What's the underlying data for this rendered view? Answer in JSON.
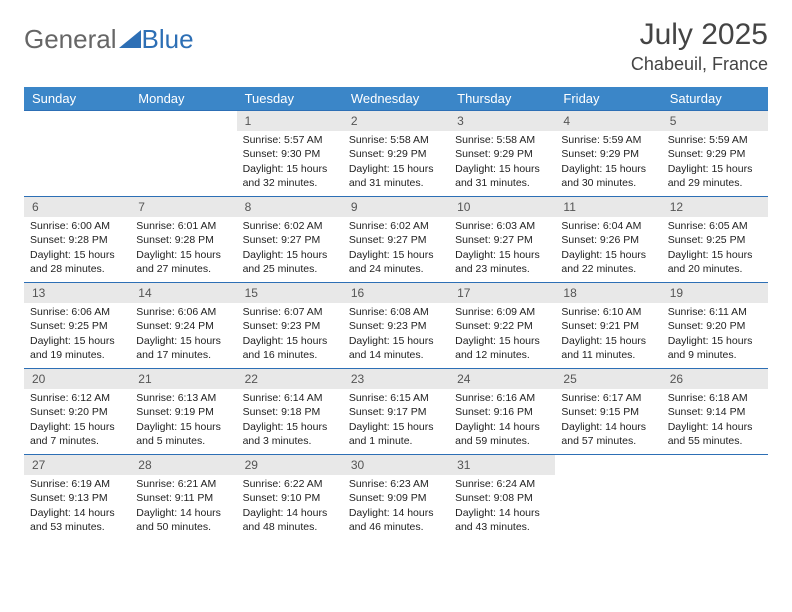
{
  "logo": {
    "part1": "General",
    "part2": "Blue"
  },
  "title": "July 2025",
  "location": "Chabeuil, France",
  "colors": {
    "header_bg": "#3b86c8",
    "header_text": "#ffffff",
    "daynum_bg": "#e8e8e8",
    "border": "#2d6fb5",
    "logo_blue": "#2d6fb5",
    "text": "#333333"
  },
  "weekdays": [
    "Sunday",
    "Monday",
    "Tuesday",
    "Wednesday",
    "Thursday",
    "Friday",
    "Saturday"
  ],
  "weeks": [
    [
      null,
      null,
      {
        "n": "1",
        "sr": "Sunrise: 5:57 AM",
        "ss": "Sunset: 9:30 PM",
        "dl": "Daylight: 15 hours and 32 minutes."
      },
      {
        "n": "2",
        "sr": "Sunrise: 5:58 AM",
        "ss": "Sunset: 9:29 PM",
        "dl": "Daylight: 15 hours and 31 minutes."
      },
      {
        "n": "3",
        "sr": "Sunrise: 5:58 AM",
        "ss": "Sunset: 9:29 PM",
        "dl": "Daylight: 15 hours and 31 minutes."
      },
      {
        "n": "4",
        "sr": "Sunrise: 5:59 AM",
        "ss": "Sunset: 9:29 PM",
        "dl": "Daylight: 15 hours and 30 minutes."
      },
      {
        "n": "5",
        "sr": "Sunrise: 5:59 AM",
        "ss": "Sunset: 9:29 PM",
        "dl": "Daylight: 15 hours and 29 minutes."
      }
    ],
    [
      {
        "n": "6",
        "sr": "Sunrise: 6:00 AM",
        "ss": "Sunset: 9:28 PM",
        "dl": "Daylight: 15 hours and 28 minutes."
      },
      {
        "n": "7",
        "sr": "Sunrise: 6:01 AM",
        "ss": "Sunset: 9:28 PM",
        "dl": "Daylight: 15 hours and 27 minutes."
      },
      {
        "n": "8",
        "sr": "Sunrise: 6:02 AM",
        "ss": "Sunset: 9:27 PM",
        "dl": "Daylight: 15 hours and 25 minutes."
      },
      {
        "n": "9",
        "sr": "Sunrise: 6:02 AM",
        "ss": "Sunset: 9:27 PM",
        "dl": "Daylight: 15 hours and 24 minutes."
      },
      {
        "n": "10",
        "sr": "Sunrise: 6:03 AM",
        "ss": "Sunset: 9:27 PM",
        "dl": "Daylight: 15 hours and 23 minutes."
      },
      {
        "n": "11",
        "sr": "Sunrise: 6:04 AM",
        "ss": "Sunset: 9:26 PM",
        "dl": "Daylight: 15 hours and 22 minutes."
      },
      {
        "n": "12",
        "sr": "Sunrise: 6:05 AM",
        "ss": "Sunset: 9:25 PM",
        "dl": "Daylight: 15 hours and 20 minutes."
      }
    ],
    [
      {
        "n": "13",
        "sr": "Sunrise: 6:06 AM",
        "ss": "Sunset: 9:25 PM",
        "dl": "Daylight: 15 hours and 19 minutes."
      },
      {
        "n": "14",
        "sr": "Sunrise: 6:06 AM",
        "ss": "Sunset: 9:24 PM",
        "dl": "Daylight: 15 hours and 17 minutes."
      },
      {
        "n": "15",
        "sr": "Sunrise: 6:07 AM",
        "ss": "Sunset: 9:23 PM",
        "dl": "Daylight: 15 hours and 16 minutes."
      },
      {
        "n": "16",
        "sr": "Sunrise: 6:08 AM",
        "ss": "Sunset: 9:23 PM",
        "dl": "Daylight: 15 hours and 14 minutes."
      },
      {
        "n": "17",
        "sr": "Sunrise: 6:09 AM",
        "ss": "Sunset: 9:22 PM",
        "dl": "Daylight: 15 hours and 12 minutes."
      },
      {
        "n": "18",
        "sr": "Sunrise: 6:10 AM",
        "ss": "Sunset: 9:21 PM",
        "dl": "Daylight: 15 hours and 11 minutes."
      },
      {
        "n": "19",
        "sr": "Sunrise: 6:11 AM",
        "ss": "Sunset: 9:20 PM",
        "dl": "Daylight: 15 hours and 9 minutes."
      }
    ],
    [
      {
        "n": "20",
        "sr": "Sunrise: 6:12 AM",
        "ss": "Sunset: 9:20 PM",
        "dl": "Daylight: 15 hours and 7 minutes."
      },
      {
        "n": "21",
        "sr": "Sunrise: 6:13 AM",
        "ss": "Sunset: 9:19 PM",
        "dl": "Daylight: 15 hours and 5 minutes."
      },
      {
        "n": "22",
        "sr": "Sunrise: 6:14 AM",
        "ss": "Sunset: 9:18 PM",
        "dl": "Daylight: 15 hours and 3 minutes."
      },
      {
        "n": "23",
        "sr": "Sunrise: 6:15 AM",
        "ss": "Sunset: 9:17 PM",
        "dl": "Daylight: 15 hours and 1 minute."
      },
      {
        "n": "24",
        "sr": "Sunrise: 6:16 AM",
        "ss": "Sunset: 9:16 PM",
        "dl": "Daylight: 14 hours and 59 minutes."
      },
      {
        "n": "25",
        "sr": "Sunrise: 6:17 AM",
        "ss": "Sunset: 9:15 PM",
        "dl": "Daylight: 14 hours and 57 minutes."
      },
      {
        "n": "26",
        "sr": "Sunrise: 6:18 AM",
        "ss": "Sunset: 9:14 PM",
        "dl": "Daylight: 14 hours and 55 minutes."
      }
    ],
    [
      {
        "n": "27",
        "sr": "Sunrise: 6:19 AM",
        "ss": "Sunset: 9:13 PM",
        "dl": "Daylight: 14 hours and 53 minutes."
      },
      {
        "n": "28",
        "sr": "Sunrise: 6:21 AM",
        "ss": "Sunset: 9:11 PM",
        "dl": "Daylight: 14 hours and 50 minutes."
      },
      {
        "n": "29",
        "sr": "Sunrise: 6:22 AM",
        "ss": "Sunset: 9:10 PM",
        "dl": "Daylight: 14 hours and 48 minutes."
      },
      {
        "n": "30",
        "sr": "Sunrise: 6:23 AM",
        "ss": "Sunset: 9:09 PM",
        "dl": "Daylight: 14 hours and 46 minutes."
      },
      {
        "n": "31",
        "sr": "Sunrise: 6:24 AM",
        "ss": "Sunset: 9:08 PM",
        "dl": "Daylight: 14 hours and 43 minutes."
      },
      null,
      null
    ]
  ]
}
